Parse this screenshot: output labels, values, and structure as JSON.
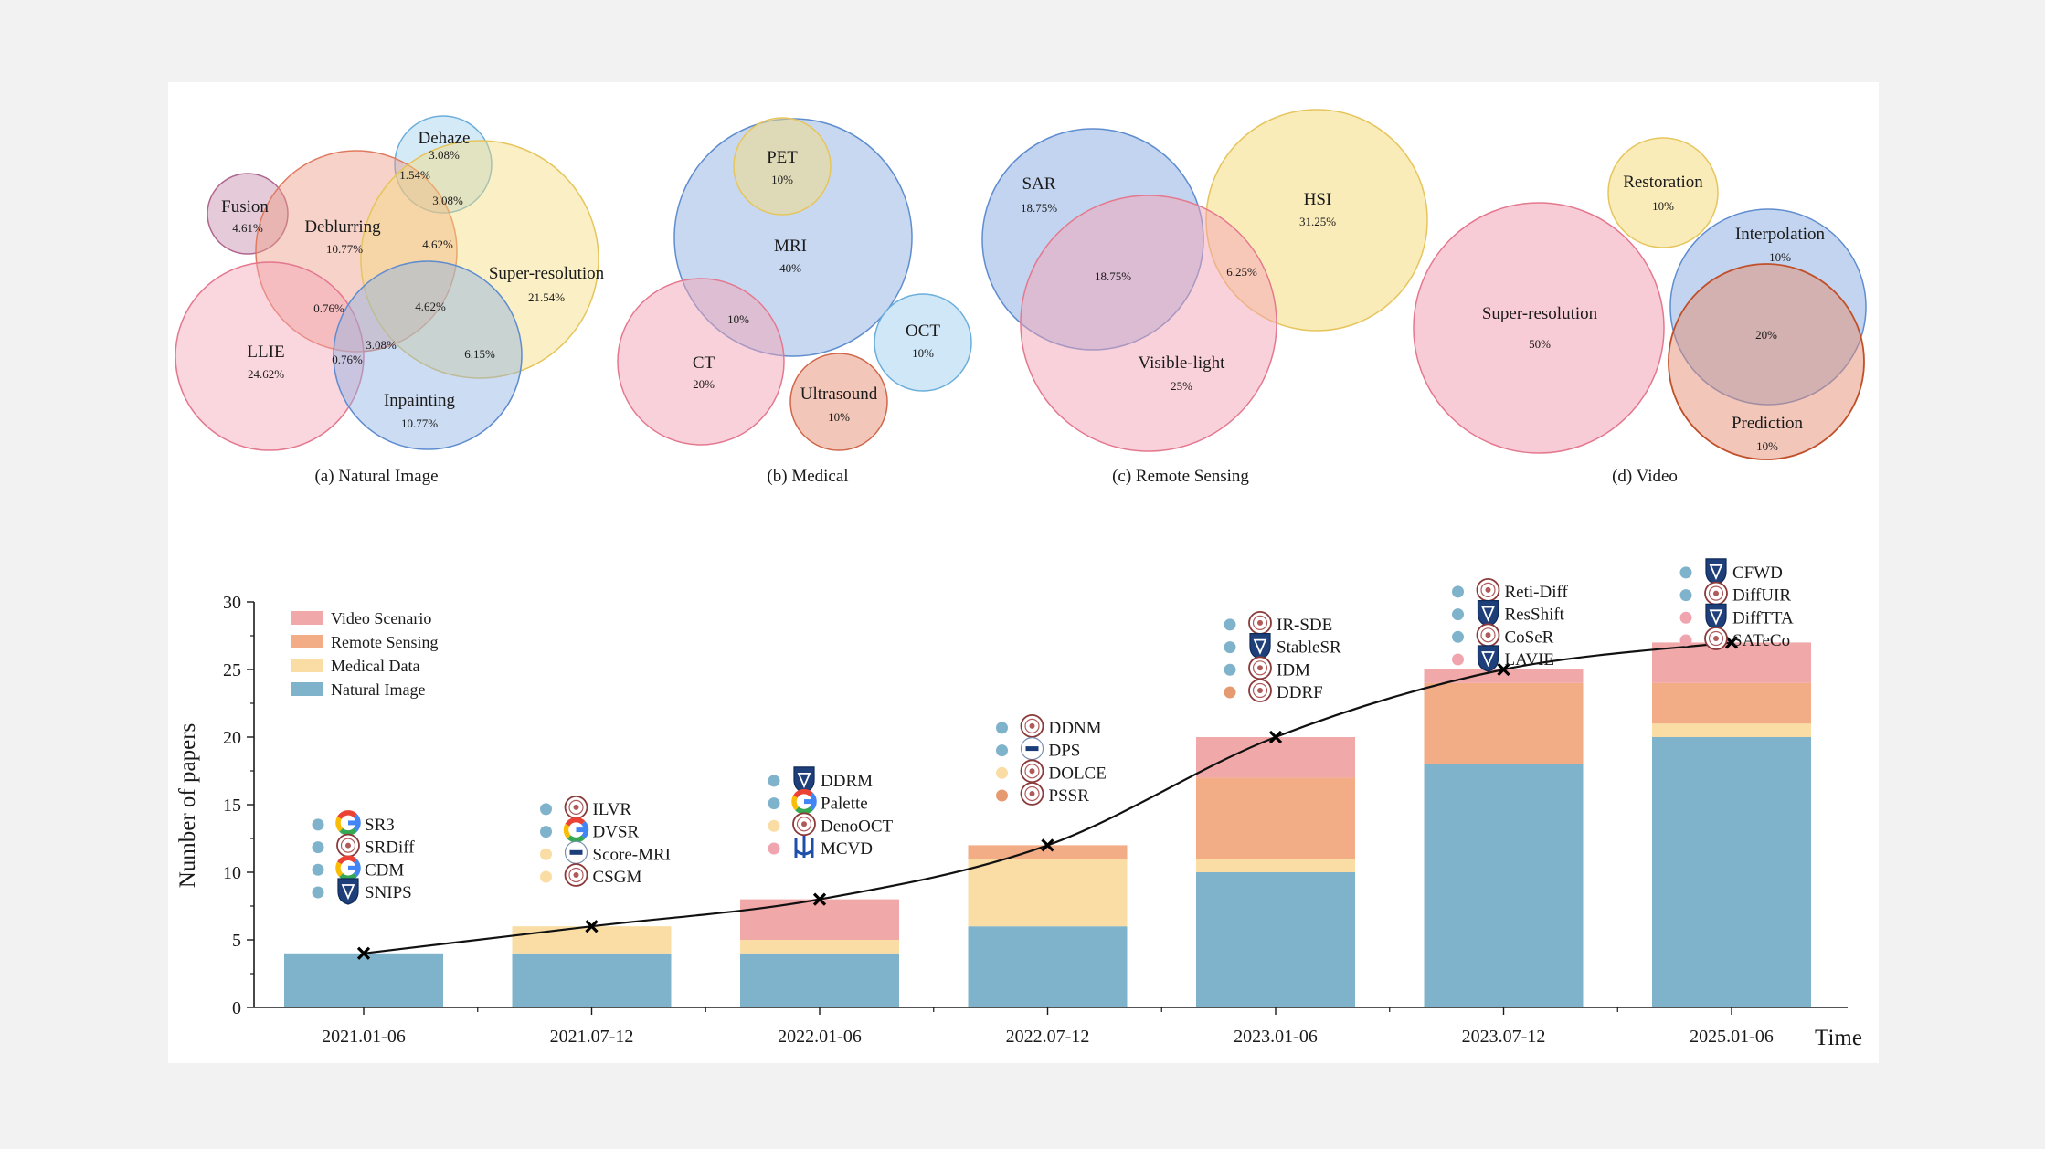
{
  "chart_data": [
    {
      "type": "bubble",
      "caption": "(a) Natural Image",
      "bubbles": [
        {
          "name": "Fusion",
          "value": "4.61%",
          "color": "#c58cab"
        },
        {
          "name": "Dehaze",
          "value": "3.08%",
          "color": "#9fd0ee"
        },
        {
          "name": "Deblurring",
          "value": "10.77%",
          "color": "#ee9c86"
        },
        {
          "name": "Super-resolution",
          "value": "21.54%",
          "color": "#f5dc7f"
        },
        {
          "name": "LLIE",
          "value": "24.62%",
          "color": "#f3a3b5"
        },
        {
          "name": "Inpainting",
          "value": "10.77%",
          "color": "#8fb1e2"
        }
      ],
      "overlaps": [
        "1.54%",
        "3.08%",
        "4.62%",
        "4.62%",
        "0.76%",
        "3.08%",
        "0.76%",
        "6.15%"
      ]
    },
    {
      "type": "bubble",
      "caption": "(b) Medical",
      "bubbles": [
        {
          "name": "MRI",
          "value": "40%",
          "color": "#8fb1e2"
        },
        {
          "name": "PET",
          "value": "10%",
          "color": "#f5dc7f"
        },
        {
          "name": "CT",
          "value": "20%",
          "color": "#f3a3b5"
        },
        {
          "name": "OCT",
          "value": "10%",
          "color": "#9fd0ee"
        },
        {
          "name": "Ultrasound",
          "value": "10%",
          "color": "#e58d73"
        }
      ],
      "overlaps": [
        "10%"
      ]
    },
    {
      "type": "bubble",
      "caption": "(c) Remote Sensing",
      "bubbles": [
        {
          "name": "SAR",
          "value": "18.75%",
          "color": "#8fb1e2"
        },
        {
          "name": "HSI",
          "value": "31.25%",
          "color": "#f5dc7f"
        },
        {
          "name": "Visible-light",
          "value": "25%",
          "color": "#f3a3b5"
        }
      ],
      "overlaps": [
        "18.75%",
        "6.25%"
      ]
    },
    {
      "type": "bubble",
      "caption": "(d) Video",
      "bubbles": [
        {
          "name": "Restoration",
          "value": "10%",
          "color": "#f5dc7f"
        },
        {
          "name": "Super-resolution",
          "value": "50%",
          "color": "#f3a3b5"
        },
        {
          "name": "Interpolation",
          "value": "10%",
          "color": "#8fb1e2"
        },
        {
          "name": "Prediction",
          "value": "10%",
          "color": "#e58d73"
        }
      ],
      "overlaps": [
        "20%"
      ]
    },
    {
      "type": "bar",
      "stacked": true,
      "ylabel": "Number of papers",
      "xlabel": "Time",
      "ylim": [
        0,
        30
      ],
      "yticks": [
        0,
        5,
        10,
        15,
        20,
        25,
        30
      ],
      "categories": [
        "2021.01-06",
        "2021.07-12",
        "2022.01-06",
        "2022.07-12",
        "2023.01-06",
        "2023.07-12",
        "2025.01-06"
      ],
      "series": [
        {
          "name": "Natural Image",
          "color": "#7fb3cb",
          "values": [
            4,
            4,
            4,
            6,
            10,
            18,
            20
          ]
        },
        {
          "name": "Medical Data",
          "color": "#f9dda4",
          "values": [
            0,
            2,
            1,
            5,
            1,
            0,
            1
          ]
        },
        {
          "name": "Remote Sensing",
          "color": "#f2ad86",
          "values": [
            0,
            0,
            0,
            1,
            6,
            6,
            3
          ]
        },
        {
          "name": "Video Scenario",
          "color": "#f1a8a8",
          "values": [
            0,
            0,
            3,
            0,
            3,
            1,
            3
          ]
        }
      ],
      "totals_line": [
        4,
        6,
        8,
        12,
        20,
        25,
        27
      ],
      "legend_position": "top-left",
      "annotations": [
        [
          {
            "label": "SR3",
            "type": "Natural Image",
            "icon": "google-logo-icon"
          },
          {
            "label": "SRDiff",
            "type": "Natural Image",
            "icon": "university-seal-icon"
          },
          {
            "label": "CDM",
            "type": "Natural Image",
            "icon": "google-logo-icon"
          },
          {
            "label": "SNIPS",
            "type": "Natural Image",
            "icon": "shield-crest-icon"
          }
        ],
        [
          {
            "label": "ILVR",
            "type": "Natural Image",
            "icon": "university-seal-icon"
          },
          {
            "label": "DVSR",
            "type": "Natural Image",
            "icon": "google-logo-icon"
          },
          {
            "label": "Score-MRI",
            "type": "Medical Data",
            "icon": "kaist-logo-icon"
          },
          {
            "label": "CSGM",
            "type": "Medical Data",
            "icon": "university-seal-icon"
          }
        ],
        [
          {
            "label": "DDRM",
            "type": "Natural Image",
            "icon": "shield-crest-icon"
          },
          {
            "label": "Palette",
            "type": "Natural Image",
            "icon": "google-logo-icon"
          },
          {
            "label": "DenoOCT",
            "type": "Medical Data",
            "icon": "university-seal-icon"
          },
          {
            "label": "MCVD",
            "type": "Video Scenario",
            "icon": "trident-logo-icon"
          }
        ],
        [
          {
            "label": "DDNM",
            "type": "Natural Image",
            "icon": "university-seal-icon"
          },
          {
            "label": "DPS",
            "type": "Natural Image",
            "icon": "kaist-logo-icon"
          },
          {
            "label": "DOLCE",
            "type": "Medical Data",
            "icon": "university-seal-icon"
          },
          {
            "label": "PSSR",
            "type": "Remote Sensing",
            "icon": "university-seal-icon"
          }
        ],
        [
          {
            "label": "IR-SDE",
            "type": "Natural Image",
            "icon": "university-seal-icon"
          },
          {
            "label": "StableSR",
            "type": "Natural Image",
            "icon": "shield-crest-icon"
          },
          {
            "label": "IDM",
            "type": "Natural Image",
            "icon": "university-seal-icon"
          },
          {
            "label": "DDRF",
            "type": "Remote Sensing",
            "icon": "university-seal-icon"
          }
        ],
        [
          {
            "label": "Reti-Diff",
            "type": "Natural Image",
            "icon": "university-seal-icon"
          },
          {
            "label": "ResShift",
            "type": "Natural Image",
            "icon": "shield-crest-icon"
          },
          {
            "label": "CoSeR",
            "type": "Natural Image",
            "icon": "university-seal-icon"
          },
          {
            "label": "LAVIE",
            "type": "Video Scenario",
            "icon": "shield-crest-icon"
          }
        ],
        [
          {
            "label": "CFWD",
            "type": "Natural Image",
            "icon": "shield-crest-icon"
          },
          {
            "label": "DiffUIR",
            "type": "Natural Image",
            "icon": "university-seal-icon"
          },
          {
            "label": "DiffTTA",
            "type": "Video Scenario",
            "icon": "shield-crest-icon"
          },
          {
            "label": "SATeCo",
            "type": "Video Scenario",
            "icon": "university-seal-icon"
          }
        ]
      ]
    }
  ]
}
